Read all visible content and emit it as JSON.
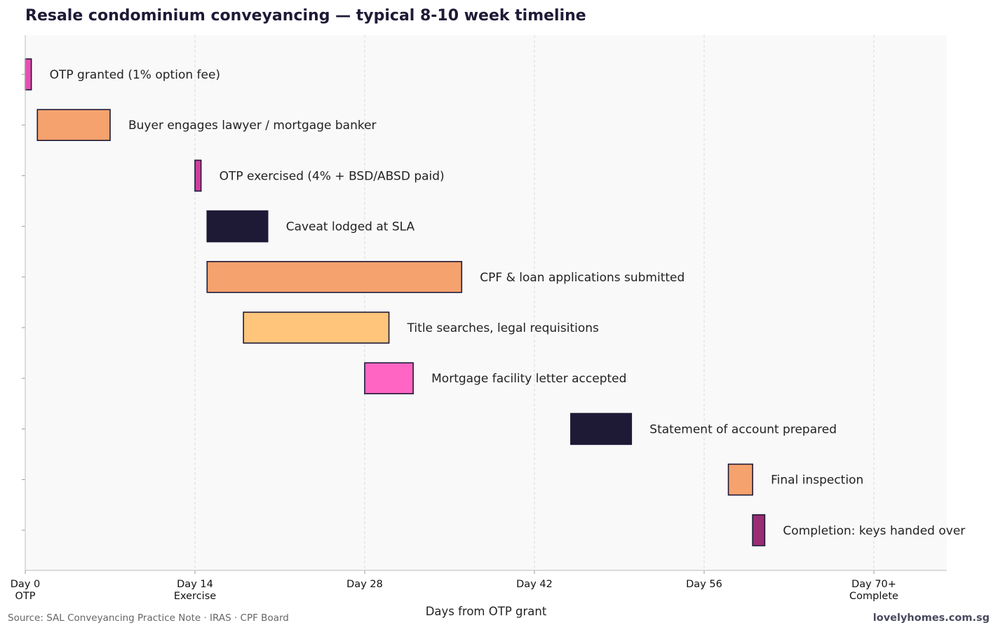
{
  "chart_data": {
    "type": "gantt",
    "title": "Resale condominium conveyancing — typical 8-10 week timeline",
    "xlabel": "Days from OTP grant",
    "ylabel": "",
    "xlim": [
      0,
      76
    ],
    "grid": "vertical dashed",
    "x_ticks": [
      {
        "value": 0,
        "label": "Day 0",
        "sublabel": "OTP"
      },
      {
        "value": 14,
        "label": "Day 14",
        "sublabel": "Exercise"
      },
      {
        "value": 28,
        "label": "Day 28",
        "sublabel": ""
      },
      {
        "value": 42,
        "label": "Day 42",
        "sublabel": ""
      },
      {
        "value": 56,
        "label": "Day 56",
        "sublabel": ""
      },
      {
        "value": 70,
        "label": "Day 70+",
        "sublabel": "Complete"
      }
    ],
    "tasks": [
      {
        "label": "OTP granted (1% option fee)",
        "start": 0,
        "end": 0.5,
        "color": "#e84eb1"
      },
      {
        "label": "Buyer engages lawyer / mortgage banker",
        "start": 1,
        "end": 7,
        "color": "#f5a26e"
      },
      {
        "label": "OTP exercised (4% + BSD/ABSD paid)",
        "start": 14,
        "end": 14.5,
        "color": "#d23e9e"
      },
      {
        "label": "Caveat lodged at SLA",
        "start": 15,
        "end": 20,
        "color": "#1e1a36"
      },
      {
        "label": "CPF & loan applications submitted",
        "start": 15,
        "end": 36,
        "color": "#f5a26e"
      },
      {
        "label": "Title searches, legal requisitions",
        "start": 18,
        "end": 30,
        "color": "#fec57b"
      },
      {
        "label": "Mortgage facility letter accepted",
        "start": 28,
        "end": 32,
        "color": "#ff66c4"
      },
      {
        "label": "Statement of account prepared",
        "start": 45,
        "end": 50,
        "color": "#1e1a36"
      },
      {
        "label": "Final inspection",
        "start": 58,
        "end": 60,
        "color": "#f5a26e"
      },
      {
        "label": "Completion: keys handed over",
        "start": 60,
        "end": 61,
        "color": "#9a2c73"
      }
    ]
  },
  "footer": {
    "source": "Source: SAL Conveyancing Practice Note · IRAS · CPF Board",
    "brand": "lovelyhomes.com.sg"
  }
}
